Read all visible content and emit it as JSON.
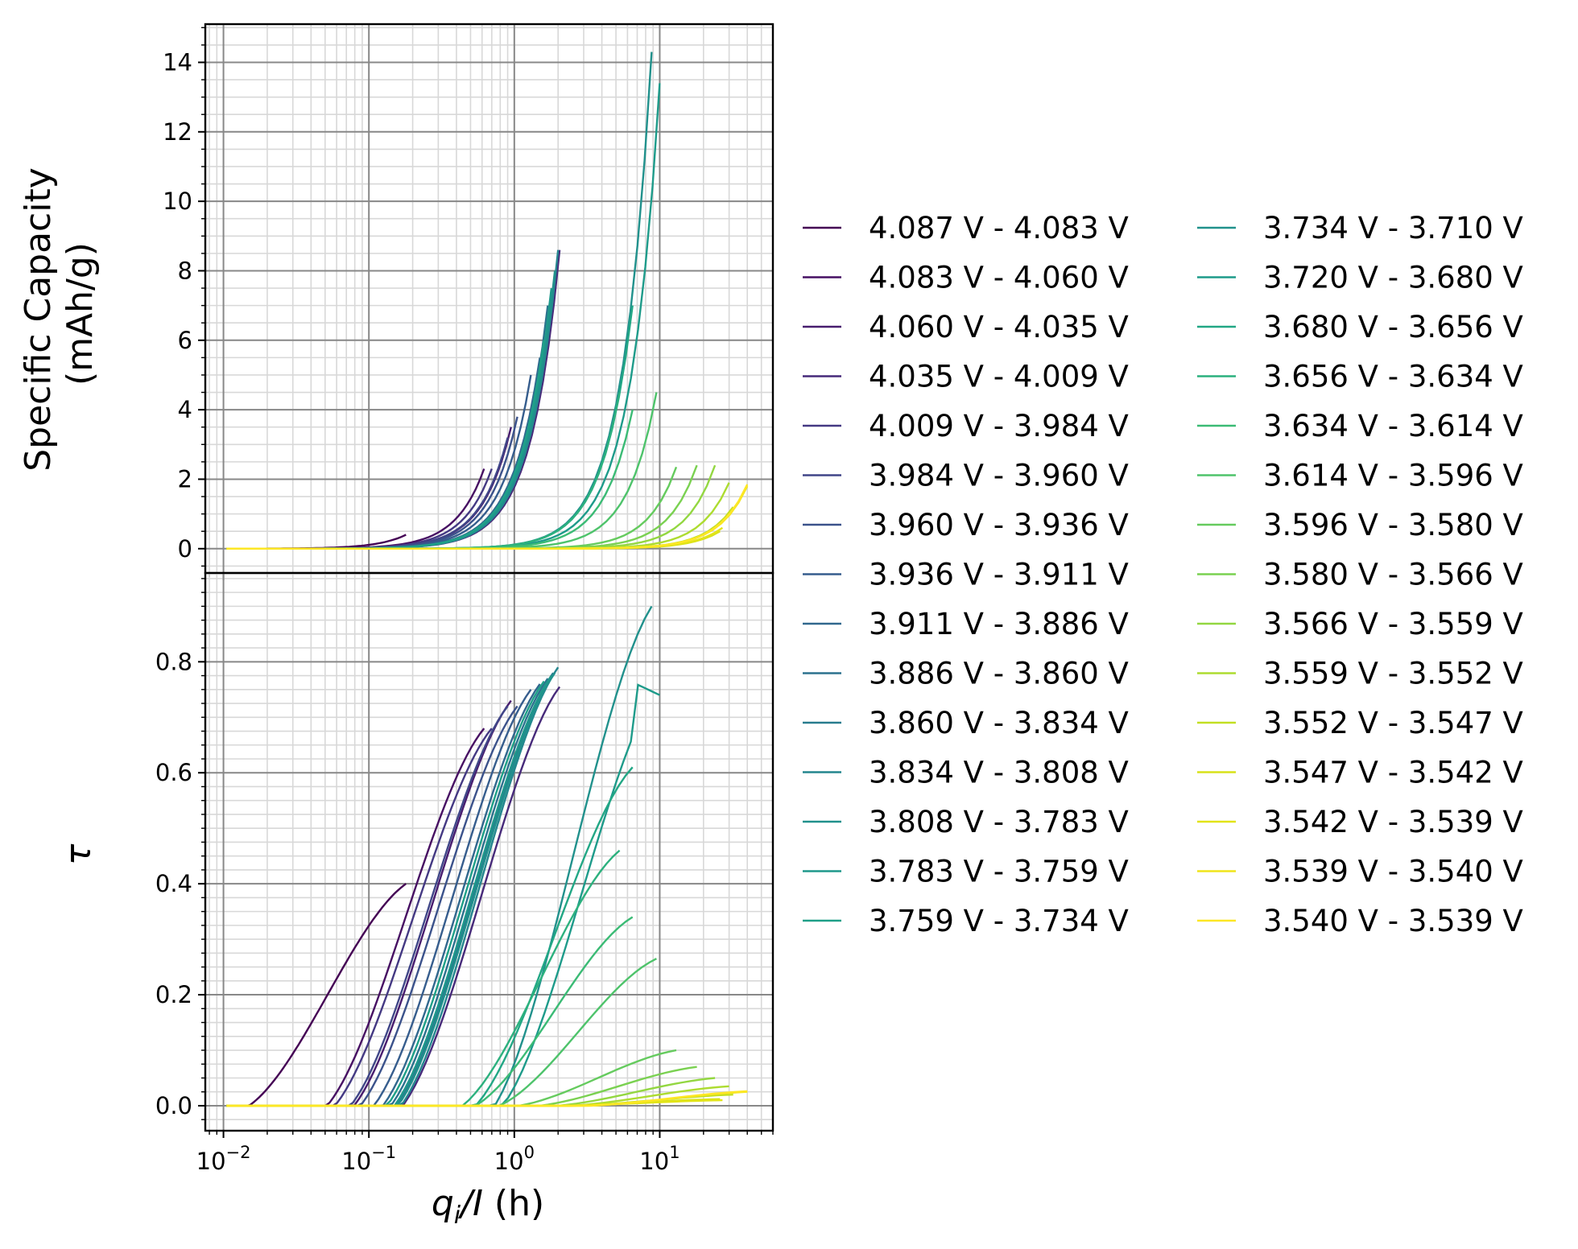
{
  "chart_data": [
    {
      "type": "line",
      "panel": "top",
      "ylabel_lines": [
        "Specific Capacity",
        "(mAh/g)"
      ],
      "xlabel": "",
      "xscale": "log",
      "xlim": [
        0.0075,
        60
      ],
      "ylim": [
        -0.7,
        15.1
      ],
      "yticks": [
        0,
        2,
        4,
        6,
        8,
        10,
        12,
        14
      ],
      "grid": true,
      "series_values": "see shared series list (curves peak values listed as y_end)"
    },
    {
      "type": "line",
      "panel": "bottom",
      "ylabel": "τ",
      "xlabel_parts": {
        "q": "q",
        "sub": "i",
        "rest": "/I",
        "unit": " (h)"
      },
      "xscale": "log",
      "xlim": [
        0.0075,
        60
      ],
      "ylim": [
        -0.045,
        0.96
      ],
      "yticks": [
        0.0,
        0.2,
        0.4,
        0.6,
        0.8
      ],
      "ytick_labels": [
        "0.0",
        "0.2",
        "0.4",
        "0.6",
        "0.8"
      ],
      "xticks": [
        0.01,
        0.1,
        1,
        10
      ],
      "xtick_labels": [
        {
          "base": "10",
          "exp": "−2"
        },
        {
          "base": "10",
          "exp": "−1"
        },
        {
          "base": "10",
          "exp": "0"
        },
        {
          "base": "10",
          "exp": "1"
        }
      ],
      "grid": true
    }
  ],
  "series": [
    {
      "name": "4.087 V - 4.083 V",
      "color": "#440154",
      "x_end": 0.18,
      "cap_end": 0.4,
      "tau_end": 0.4,
      "tau_peak": null
    },
    {
      "name": "4.083 V - 4.060 V",
      "color": "#471063",
      "x_end": 0.62,
      "cap_end": 2.3,
      "tau_end": 0.68,
      "tau_peak": null
    },
    {
      "name": "4.060 V - 4.035 V",
      "color": "#481d6f",
      "x_end": 0.95,
      "cap_end": 3.5,
      "tau_end": 0.73,
      "tau_peak": null
    },
    {
      "name": "4.035 V - 4.009 V",
      "color": "#472a7a",
      "x_end": 2.05,
      "cap_end": 8.6,
      "tau_end": 0.755,
      "tau_peak": null
    },
    {
      "name": "4.009 V - 3.984 V",
      "color": "#443983",
      "x_end": 0.7,
      "cap_end": 2.3,
      "tau_end": 0.68,
      "tau_peak": null
    },
    {
      "name": "3.984 V - 3.960 V",
      "color": "#404688",
      "x_end": 0.9,
      "cap_end": 3.2,
      "tau_end": 0.72,
      "tau_peak": null
    },
    {
      "name": "3.960 V - 3.936 V",
      "color": "#3b528b",
      "x_end": 1.05,
      "cap_end": 3.8,
      "tau_end": 0.72,
      "tau_peak": null
    },
    {
      "name": "3.936 V - 3.911 V",
      "color": "#365d8d",
      "x_end": 1.3,
      "cap_end": 5.0,
      "tau_end": 0.75,
      "tau_peak": null
    },
    {
      "name": "3.911 V - 3.886 V",
      "color": "#31688e",
      "x_end": 1.5,
      "cap_end": 5.5,
      "tau_end": 0.76,
      "tau_peak": null
    },
    {
      "name": "3.886 V - 3.860 V",
      "color": "#2c728e",
      "x_end": 1.7,
      "cap_end": 7.0,
      "tau_end": 0.77,
      "tau_peak": null
    },
    {
      "name": "3.860 V - 3.834 V",
      "color": "#287c8e",
      "x_end": 1.85,
      "cap_end": 7.5,
      "tau_end": 0.78,
      "tau_peak": null
    },
    {
      "name": "3.834 V - 3.808 V",
      "color": "#24868e",
      "x_end": 2.0,
      "cap_end": 8.6,
      "tau_end": 0.79,
      "tau_peak": null
    },
    {
      "name": "3.808 V - 3.783 V",
      "color": "#21918c",
      "x_end": 1.9,
      "cap_end": 8.0,
      "tau_end": 0.78,
      "tau_peak": null
    },
    {
      "name": "3.783 V - 3.759 V",
      "color": "#1f988b",
      "x_end": 1.8,
      "cap_end": 7.5,
      "tau_end": 0.775,
      "tau_peak": null
    },
    {
      "name": "3.759 V - 3.734 V",
      "color": "#1fa088",
      "x_end": 1.6,
      "cap_end": 6.0,
      "tau_end": 0.765,
      "tau_peak": null
    },
    {
      "name": "3.734 V - 3.710 V",
      "color": "#21918c",
      "x_end": 8.8,
      "cap_end": 14.3,
      "tau_end": 0.9,
      "tau_peak": null
    },
    {
      "name": "3.720 V - 3.680 V",
      "color": "#1e9b8a",
      "x_end": 10.0,
      "cap_end": 13.4,
      "tau_end": 0.74,
      "tau_peak": 0.76
    },
    {
      "name": "3.680 V - 3.656 V",
      "color": "#22a785",
      "x_end": 6.5,
      "cap_end": 7.0,
      "tau_end": 0.61,
      "tau_peak": null
    },
    {
      "name": "3.656 V - 3.634 V",
      "color": "#2cb17e",
      "x_end": 5.3,
      "cap_end": 4.5,
      "tau_end": 0.46,
      "tau_peak": null
    },
    {
      "name": "3.634 V - 3.614 V",
      "color": "#3bbb75",
      "x_end": 6.5,
      "cap_end": 4.0,
      "tau_end": 0.34,
      "tau_peak": null
    },
    {
      "name": "3.614 V - 3.596 V",
      "color": "#4ec36b",
      "x_end": 9.5,
      "cap_end": 4.5,
      "tau_end": 0.265,
      "tau_peak": null
    },
    {
      "name": "3.596 V - 3.580 V",
      "color": "#65cb5e",
      "x_end": 13.0,
      "cap_end": 2.35,
      "tau_end": 0.1,
      "tau_peak": null
    },
    {
      "name": "3.580 V - 3.566 V",
      "color": "#7ad151",
      "x_end": 18.0,
      "cap_end": 2.4,
      "tau_end": 0.07,
      "tau_peak": null
    },
    {
      "name": "3.566 V - 3.559 V",
      "color": "#93d741",
      "x_end": 24.0,
      "cap_end": 2.4,
      "tau_end": 0.05,
      "tau_peak": null
    },
    {
      "name": "3.559 V - 3.552 V",
      "color": "#addc30",
      "x_end": 30.0,
      "cap_end": 1.9,
      "tau_end": 0.035,
      "tau_peak": null
    },
    {
      "name": "3.552 V - 3.547 V",
      "color": "#c2df23",
      "x_end": 32.0,
      "cap_end": 1.2,
      "tau_end": 0.02,
      "tau_peak": null
    },
    {
      "name": "3.547 V - 3.542 V",
      "color": "#d8e219",
      "x_end": 26.0,
      "cap_end": 0.5,
      "tau_end": 0.012,
      "tau_peak": null
    },
    {
      "name": "3.542 V - 3.539 V",
      "color": "#e2e418",
      "x_end": 27.0,
      "cap_end": 0.6,
      "tau_end": 0.01,
      "tau_peak": null
    },
    {
      "name": "3.539 V - 3.540 V",
      "color": "#f0e51b",
      "x_end": 40.0,
      "cap_end": 1.8,
      "tau_end": 0.025,
      "tau_peak": null
    },
    {
      "name": "3.540 V - 3.539 V",
      "color": "#fde725",
      "x_end": 40.0,
      "cap_end": 1.85,
      "tau_end": 0.026,
      "tau_peak": null
    }
  ]
}
